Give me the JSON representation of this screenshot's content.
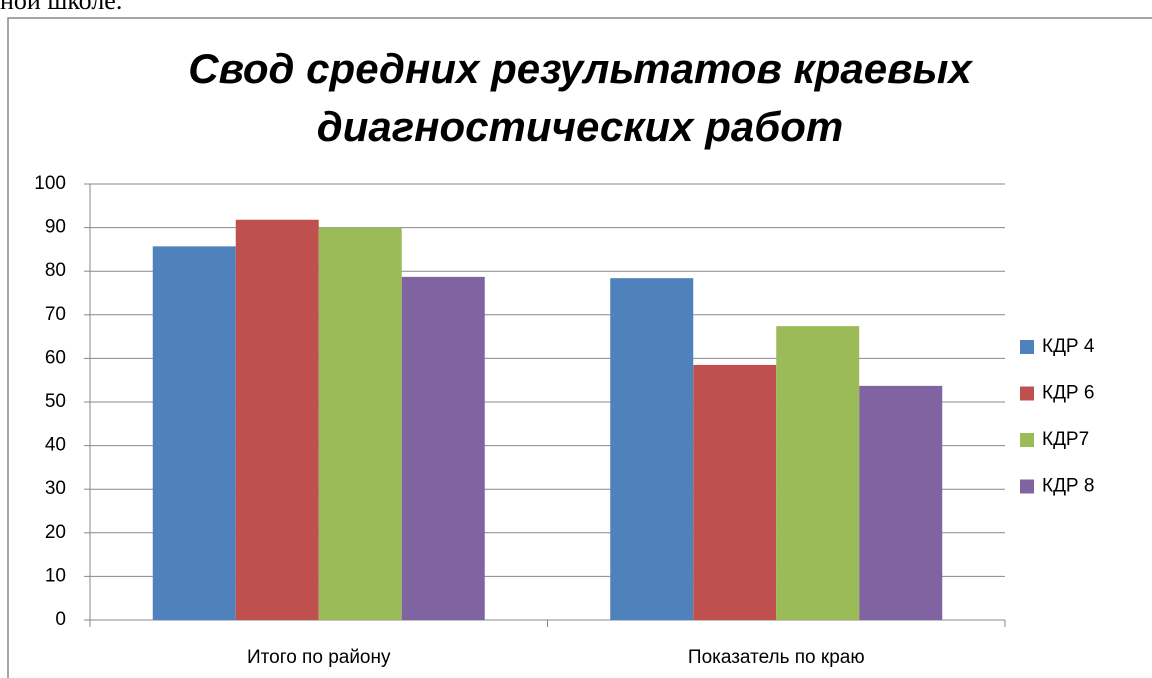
{
  "page_text": "ной школе.",
  "chart_data": {
    "type": "bar",
    "title": "Свод средних результатов краевых диагностических работ",
    "categories": [
      "Итого по району",
      "Показатель по краю"
    ],
    "series": [
      {
        "name": "КДР 4",
        "color": "#4f81bd",
        "values": [
          85.7,
          78.4
        ]
      },
      {
        "name": "КДР 6",
        "color": "#c0504d",
        "values": [
          91.8,
          58.5
        ]
      },
      {
        "name": "КДР7",
        "color": "#9bbb59",
        "values": [
          90,
          67.4
        ]
      },
      {
        "name": "КДР 8",
        "color": "#8064a2",
        "values": [
          78.7,
          53.7
        ]
      }
    ],
    "ylim": [
      0,
      100
    ],
    "yticks": [
      0,
      10,
      20,
      30,
      40,
      50,
      60,
      70,
      80,
      90,
      100
    ],
    "grid": true,
    "legend": "right"
  }
}
